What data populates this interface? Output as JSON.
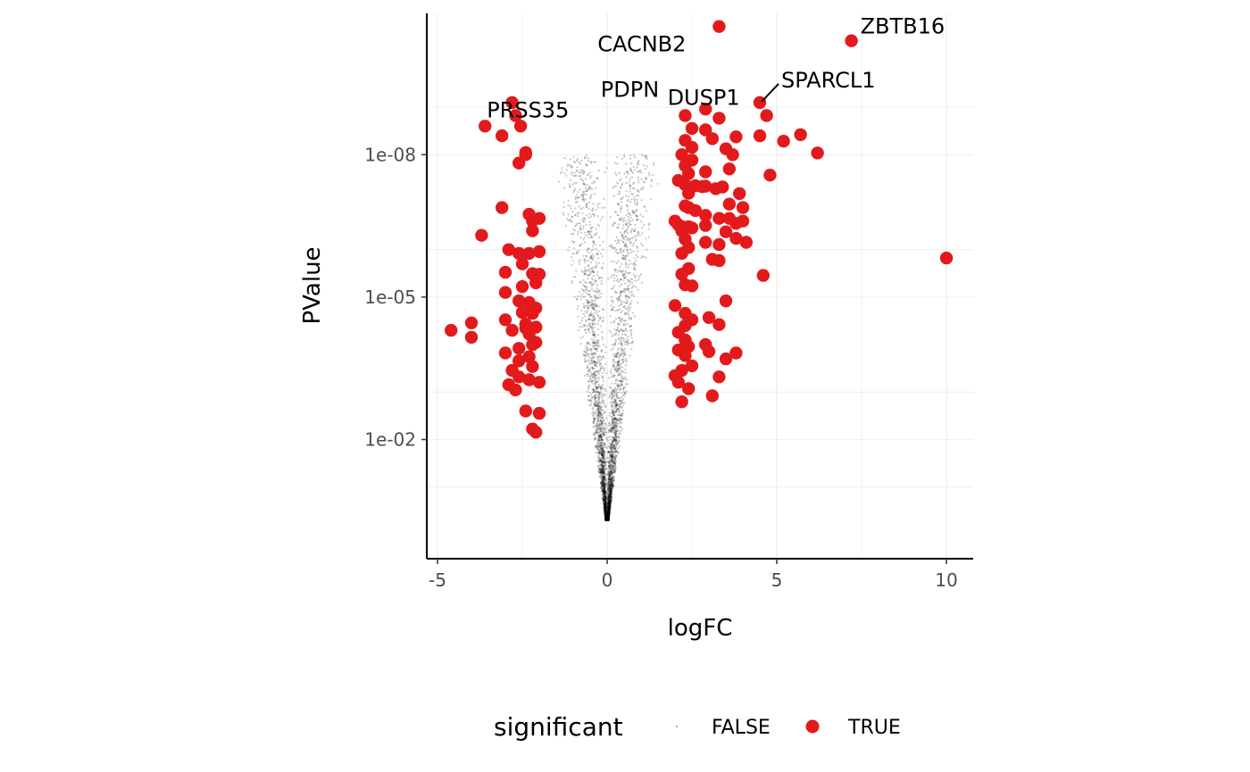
{
  "chart_data": {
    "type": "scatter",
    "title": "",
    "xlabel": "logFC",
    "ylabel": "PValue",
    "xlim": [
      -5.2,
      10.7
    ],
    "y_scale": "log10-reversed",
    "ylim": [
      1,
      1e-12
    ],
    "x_ticks": [
      -5,
      0,
      5,
      10
    ],
    "x_tick_labels": [
      "-5",
      "0",
      "5",
      "10"
    ],
    "y_ticks": [
      0.01,
      1e-05,
      1e-08
    ],
    "y_tick_labels": [
      "1e-02",
      "1e-05",
      "1e-08"
    ],
    "grid": true,
    "legend": {
      "title": "significant",
      "position": "bottom",
      "entries": [
        {
          "label": "FALSE",
          "color": "#000000"
        },
        {
          "label": "TRUE",
          "color": "#E31A1C"
        }
      ]
    },
    "series": [
      {
        "name": "FALSE",
        "color": "#000000",
        "style": "small semi-transparent points forming a V from logFC 0 (PValue ~1) widening to about logFC -1.6 / +1.6 at PValue ~1e-8",
        "envelope": {
          "center_x": 0,
          "half_width_at_ymax": 1.6,
          "y_min": 0.5,
          "y_max": 1e-08
        }
      },
      {
        "name": "TRUE",
        "color": "#E31A1C",
        "points": [
          [
            -4.6,
            5e-05
          ],
          [
            -4.0,
            3.5e-05
          ],
          [
            -4.0,
            7e-05
          ],
          [
            -3.7,
            5e-07
          ],
          [
            -3.6,
            2.5e-09
          ],
          [
            -3.1,
            1.3e-07
          ],
          [
            -3.1,
            4e-09
          ],
          [
            -2.8,
            8e-10
          ],
          [
            -2.7,
            1.5e-09
          ],
          [
            -2.55,
            2.5e-09
          ],
          [
            -2.6,
            1.5e-08
          ],
          [
            -2.4,
            1e-08
          ],
          [
            -2.4,
            9e-09
          ],
          [
            -2.3,
            1.8e-07
          ],
          [
            -2.2,
            2.5e-07
          ],
          [
            -2.0,
            2.2e-07
          ],
          [
            -2.2,
            4e-07
          ],
          [
            -2.6,
            1.2e-06
          ],
          [
            -2.3,
            1.2e-06
          ],
          [
            -2.0,
            1.1e-06
          ],
          [
            -2.5,
            2e-06
          ],
          [
            -2.2,
            3.2e-06
          ],
          [
            -2.0,
            3.3e-06
          ],
          [
            -2.5,
            6e-06
          ],
          [
            -2.1,
            5e-06
          ],
          [
            -2.6,
            1.2e-05
          ],
          [
            -2.3,
            1.3e-05
          ],
          [
            -2.1,
            1.7e-05
          ],
          [
            -2.5,
            2.1e-05
          ],
          [
            -2.2,
            2.2e-05
          ],
          [
            -2.4,
            3.7e-05
          ],
          [
            -2.1,
            4.3e-05
          ],
          [
            -2.3,
            6e-05
          ],
          [
            -2.1,
            9e-05
          ],
          [
            -2.6,
            0.00012
          ],
          [
            -2.3,
            0.00018
          ],
          [
            -2.6,
            0.00022
          ],
          [
            -2.2,
            0.00029
          ],
          [
            -2.8,
            0.00035
          ],
          [
            -2.6,
            0.00048
          ],
          [
            -2.8,
            5e-05
          ],
          [
            -2.4,
            4.5e-05
          ],
          [
            -2.3,
            0.00055
          ],
          [
            -2.0,
            0.00062
          ],
          [
            -2.7,
            0.0009
          ],
          [
            -2.2,
            0.0001
          ],
          [
            -2.4,
            0.0025
          ],
          [
            -2.0,
            0.0028
          ],
          [
            -2.2,
            0.006
          ],
          [
            -2.1,
            0.007
          ],
          [
            -3.0,
            3e-06
          ],
          [
            -2.9,
            1e-06
          ],
          [
            -3.0,
            8e-06
          ],
          [
            -3.0,
            3e-05
          ],
          [
            -3.0,
            0.00015
          ],
          [
            -2.9,
            0.0007
          ],
          [
            2.3,
            1.5e-09
          ],
          [
            2.5,
            2.8e-09
          ],
          [
            2.3,
            5e-09
          ],
          [
            2.5,
            7e-09
          ],
          [
            2.2,
            1e-08
          ],
          [
            2.5,
            1.3e-08
          ],
          [
            2.3,
            1.7e-08
          ],
          [
            2.4,
            2.5e-08
          ],
          [
            2.1,
            3.5e-08
          ],
          [
            2.3,
            4.3e-08
          ],
          [
            2.6,
            4.5e-08
          ],
          [
            2.8,
            4.7e-08
          ],
          [
            2.4,
            6.5e-08
          ],
          [
            2.4,
            1.3e-07
          ],
          [
            2.3,
            1.2e-07
          ],
          [
            2.6,
            1.5e-07
          ],
          [
            2.1,
            3e-07
          ],
          [
            2.2,
            3.3e-07
          ],
          [
            2.4,
            3.3e-07
          ],
          [
            2.5,
            3.5e-07
          ],
          [
            2.9,
            3.1e-07
          ],
          [
            2.0,
            2.5e-07
          ],
          [
            2.2,
            4e-07
          ],
          [
            2.3,
            6e-07
          ],
          [
            2.4,
            9e-07
          ],
          [
            2.2,
            1.2e-06
          ],
          [
            2.4,
            2.5e-06
          ],
          [
            2.2,
            3.3e-06
          ],
          [
            2.3,
            5.5e-06
          ],
          [
            2.5,
            5.8e-06
          ],
          [
            2.0,
            1.5e-05
          ],
          [
            2.3,
            2.2e-05
          ],
          [
            2.5,
            3e-05
          ],
          [
            2.3,
            4e-05
          ],
          [
            2.1,
            5.5e-05
          ],
          [
            2.3,
            8e-05
          ],
          [
            2.4,
            0.00011
          ],
          [
            2.1,
            0.00013
          ],
          [
            2.3,
            0.00017
          ],
          [
            2.5,
            0.00028
          ],
          [
            2.2,
            0.00035
          ],
          [
            2.0,
            0.00045
          ],
          [
            2.1,
            0.00062
          ],
          [
            2.4,
            0.00085
          ],
          [
            2.2,
            0.0016
          ],
          [
            2.9,
            1.1e-09
          ],
          [
            3.3,
            1.7e-09
          ],
          [
            2.9,
            3e-09
          ],
          [
            3.1,
            4.6e-09
          ],
          [
            3.5,
            7.5e-09
          ],
          [
            3.8,
            4.2e-09
          ],
          [
            3.7,
            1e-08
          ],
          [
            3.6,
            2e-08
          ],
          [
            2.9,
            2.3e-08
          ],
          [
            2.9,
            4.6e-08
          ],
          [
            3.2,
            5.2e-08
          ],
          [
            3.4,
            4.8e-08
          ],
          [
            3.9,
            6.6e-08
          ],
          [
            3.6,
            1.1e-07
          ],
          [
            4.0,
            1.3e-07
          ],
          [
            2.9,
            1.9e-07
          ],
          [
            3.3,
            2.2e-07
          ],
          [
            3.6,
            2.2e-07
          ],
          [
            3.8,
            2.8e-07
          ],
          [
            4.0,
            2.5e-07
          ],
          [
            3.5,
            4.2e-07
          ],
          [
            3.8,
            5.8e-07
          ],
          [
            4.1,
            7e-07
          ],
          [
            2.9,
            7e-07
          ],
          [
            3.3,
            7.8e-07
          ],
          [
            3.1,
            1.6e-06
          ],
          [
            3.3,
            1.7e-06
          ],
          [
            3.0,
            2.7e-05
          ],
          [
            3.3,
            3.8e-05
          ],
          [
            2.9,
            0.0001
          ],
          [
            3.0,
            0.00014
          ],
          [
            3.3,
            0.00048
          ],
          [
            3.8,
            0.00015
          ],
          [
            3.5,
            1.2e-05
          ],
          [
            4.6,
            3.5e-06
          ],
          [
            3.1,
            0.0012
          ],
          [
            3.5,
            0.0002
          ],
          [
            3.3,
            2e-11
          ],
          [
            4.5,
            8e-10
          ],
          [
            4.7,
            1.5e-09
          ],
          [
            4.5,
            4e-09
          ],
          [
            5.2,
            5.2e-09
          ],
          [
            5.7,
            3.8e-09
          ],
          [
            6.2,
            9.2e-09
          ],
          [
            4.8,
            2.7e-08
          ],
          [
            7.2,
            4e-11
          ],
          [
            10.0,
            1.5e-06
          ]
        ]
      }
    ],
    "annotations": [
      {
        "text": "ZBTB16",
        "x": 7.2,
        "y": 4e-11
      },
      {
        "text": "CACNB2",
        "x": 3.3,
        "y": 2e-11
      },
      {
        "text": "SPARCL1",
        "x": 4.5,
        "y": 8e-10
      },
      {
        "text": "DUSP1",
        "x": 4.7,
        "y": 1.5e-09
      },
      {
        "text": "PDPN",
        "x": 2.9,
        "y": 1.1e-09
      },
      {
        "text": "PRSS35",
        "x": -3.6,
        "y": 2.5e-09
      }
    ]
  }
}
